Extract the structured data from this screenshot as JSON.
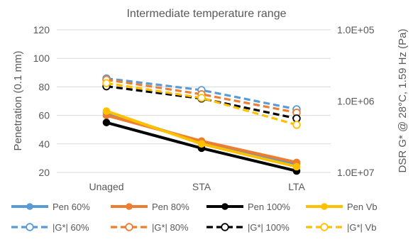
{
  "chart_data": {
    "type": "line",
    "title": "Intermediate temperature range",
    "categories": [
      "Unaged",
      "STA",
      "LTA"
    ],
    "y_left": {
      "label": "Penetration (0.1 mm)",
      "lim": [
        20,
        120
      ],
      "ticks": [
        "20",
        "40",
        "60",
        "80",
        "100",
        "120"
      ],
      "tick_values": [
        20,
        40,
        60,
        80,
        100,
        120
      ]
    },
    "y_right": {
      "label": "DSR  G* @ 28°C, 1.59 Hz (Pa)",
      "scale": "log",
      "reversed": true,
      "lim": [
        100000,
        10000000
      ],
      "ticks": [
        "1.0E+05",
        "1.0E+06",
        "1.0E+07"
      ],
      "tick_values": [
        100000,
        1000000,
        10000000
      ]
    },
    "grid": true,
    "legend_position": "bottom",
    "series": [
      {
        "name": "Pen 60%",
        "axis": "left",
        "style": "solid",
        "marker": "filled",
        "color": "#5B9BD5",
        "values": [
          62,
          41,
          26
        ]
      },
      {
        "name": "Pen 80%",
        "axis": "left",
        "style": "solid",
        "marker": "filled",
        "color": "#ED7D31",
        "values": [
          60,
          42,
          27
        ]
      },
      {
        "name": "Pen 100%",
        "axis": "left",
        "style": "solid",
        "marker": "filled",
        "color": "#000000",
        "values": [
          55,
          37,
          21
        ]
      },
      {
        "name": "Pen Vb",
        "axis": "left",
        "style": "solid",
        "marker": "filled",
        "color": "#FFC000",
        "values": [
          63,
          40,
          24
        ]
      },
      {
        "name": "|G*| 60%",
        "axis": "right",
        "style": "dashed",
        "marker": "open",
        "color": "#5B9BD5",
        "values": [
          480000,
          700000,
          1300000
        ]
      },
      {
        "name": "|G*| 80%",
        "axis": "right",
        "style": "dashed",
        "marker": "open",
        "color": "#ED7D31",
        "values": [
          500000,
          800000,
          1450000
        ]
      },
      {
        "name": "|G*| 100%",
        "axis": "right",
        "style": "dashed",
        "marker": "open",
        "color": "#000000",
        "values": [
          620000,
          920000,
          1750000
        ]
      },
      {
        "name": "|G*| Vb",
        "axis": "right",
        "style": "dashed",
        "marker": "open",
        "color": "#FFC000",
        "values": [
          560000,
          900000,
          2150000
        ]
      }
    ]
  }
}
